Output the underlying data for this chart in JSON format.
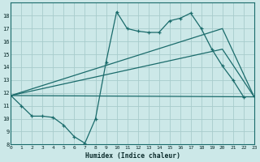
{
  "xlabel": "Humidex (Indice chaleur)",
  "xlim": [
    0,
    23
  ],
  "ylim": [
    8,
    19
  ],
  "yticks": [
    8,
    9,
    10,
    11,
    12,
    13,
    14,
    15,
    16,
    17,
    18
  ],
  "xticks": [
    0,
    1,
    2,
    3,
    4,
    5,
    6,
    7,
    8,
    9,
    10,
    11,
    12,
    13,
    14,
    15,
    16,
    17,
    18,
    19,
    20,
    21,
    22,
    23
  ],
  "bg_color": "#cce8e8",
  "grid_color": "#a8cccc",
  "line_color": "#1a6b6b",
  "line1_x": [
    0,
    1,
    2,
    3,
    4,
    5,
    6,
    7,
    8,
    9,
    10,
    11,
    12,
    13,
    14,
    15,
    16,
    17,
    18,
    19,
    20,
    21,
    22
  ],
  "line1_y": [
    11.8,
    11.0,
    10.2,
    10.2,
    10.1,
    9.5,
    8.6,
    8.1,
    10.0,
    14.4,
    18.3,
    17.0,
    16.8,
    16.7,
    16.7,
    17.6,
    17.8,
    18.2,
    17.0,
    15.4,
    14.1,
    13.0,
    11.7
  ],
  "line2_x": [
    0,
    23
  ],
  "line2_y": [
    11.8,
    11.7
  ],
  "line3_x": [
    0,
    20,
    23
  ],
  "line3_y": [
    11.8,
    15.4,
    11.7
  ],
  "line4_x": [
    0,
    20,
    23
  ],
  "line4_y": [
    11.8,
    17.0,
    11.7
  ]
}
